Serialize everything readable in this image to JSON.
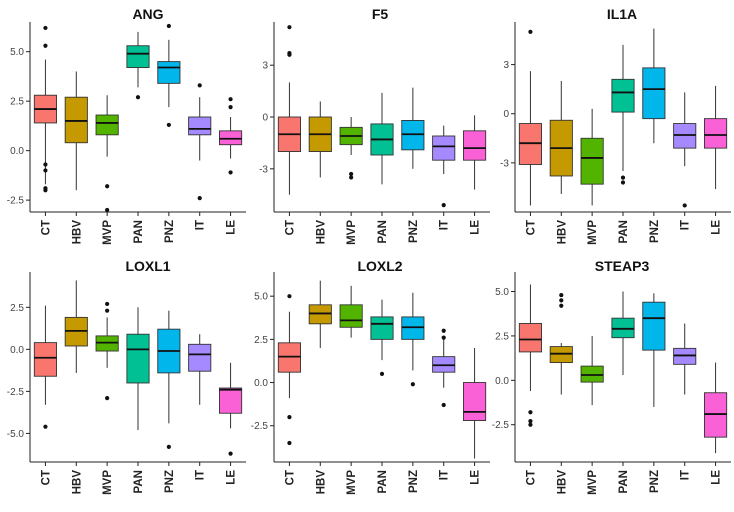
{
  "figure": "Boxplots of gene expression across sample groups",
  "chart_data": [
    {
      "type": "boxplot",
      "title": "ANG",
      "categories": [
        "CT",
        "HBV",
        "MVP",
        "PAN",
        "PNZ",
        "IT",
        "LE"
      ],
      "yticks": [
        -2.5,
        0.0,
        2.5,
        5.0
      ],
      "ytick_labels": [
        "-2.5",
        "0.0",
        "2.5",
        "5.0"
      ],
      "ylim": [
        -3.1,
        6.5
      ],
      "boxes": [
        {
          "min": -1.7,
          "q1": 1.4,
          "median": 2.1,
          "q3": 2.8,
          "max": 4.6,
          "outliers": [
            6.2,
            5.3,
            -0.7,
            -1.0,
            -1.9,
            -2.0
          ]
        },
        {
          "min": -2.0,
          "q1": 0.4,
          "median": 1.5,
          "q3": 2.7,
          "max": 4.0,
          "outliers": []
        },
        {
          "min": -0.3,
          "q1": 0.8,
          "median": 1.4,
          "q3": 1.8,
          "max": 2.8,
          "outliers": [
            -1.8,
            -3.0
          ]
        },
        {
          "min": 3.2,
          "q1": 4.2,
          "median": 4.9,
          "q3": 5.3,
          "max": 6.0,
          "outliers": [
            2.7
          ]
        },
        {
          "min": 2.2,
          "q1": 3.4,
          "median": 4.2,
          "q3": 4.5,
          "max": 5.6,
          "outliers": [
            6.3,
            1.3
          ]
        },
        {
          "min": -0.5,
          "q1": 0.8,
          "median": 1.1,
          "q3": 1.7,
          "max": 2.7,
          "outliers": [
            3.3,
            -2.4
          ]
        },
        {
          "min": -0.4,
          "q1": 0.3,
          "median": 0.6,
          "q3": 1.0,
          "max": 1.7,
          "outliers": [
            2.6,
            2.2,
            -1.1
          ]
        }
      ]
    },
    {
      "type": "boxplot",
      "title": "F5",
      "categories": [
        "CT",
        "HBV",
        "MVP",
        "PAN",
        "PNZ",
        "IT",
        "LE"
      ],
      "yticks": [
        -3,
        0,
        3
      ],
      "ytick_labels": [
        "-3",
        "0",
        "3"
      ],
      "ylim": [
        -5.5,
        5.5
      ],
      "boxes": [
        {
          "min": -4.5,
          "q1": -2.0,
          "median": -1.0,
          "q3": 0.0,
          "max": 2.0,
          "outliers": [
            5.2,
            3.7,
            3.6
          ]
        },
        {
          "min": -3.5,
          "q1": -2.0,
          "median": -1.0,
          "q3": 0.0,
          "max": 0.9,
          "outliers": []
        },
        {
          "min": -2.2,
          "q1": -1.6,
          "median": -1.1,
          "q3": -0.6,
          "max": 0.0,
          "outliers": [
            -3.3,
            -3.5
          ]
        },
        {
          "min": -3.9,
          "q1": -2.2,
          "median": -1.3,
          "q3": -0.4,
          "max": 1.4,
          "outliers": []
        },
        {
          "min": -3.0,
          "q1": -1.9,
          "median": -1.0,
          "q3": -0.2,
          "max": 1.7,
          "outliers": []
        },
        {
          "min": -3.3,
          "q1": -2.5,
          "median": -1.7,
          "q3": -1.1,
          "max": -0.5,
          "outliers": [
            -5.1
          ]
        },
        {
          "min": -4.2,
          "q1": -2.5,
          "median": -1.8,
          "q3": -0.8,
          "max": 0.1,
          "outliers": []
        }
      ]
    },
    {
      "type": "boxplot",
      "title": "IL1A",
      "categories": [
        "CT",
        "HBV",
        "MVP",
        "PAN",
        "PNZ",
        "IT",
        "LE"
      ],
      "yticks": [
        -3,
        0,
        3
      ],
      "ytick_labels": [
        "-3",
        "0",
        "3"
      ],
      "ylim": [
        -6.0,
        5.6
      ],
      "boxes": [
        {
          "min": -5.6,
          "q1": -3.1,
          "median": -1.8,
          "q3": -0.6,
          "max": 2.6,
          "outliers": [
            5.0
          ]
        },
        {
          "min": -4.9,
          "q1": -3.8,
          "median": -2.1,
          "q3": -0.4,
          "max": 2.0,
          "outliers": []
        },
        {
          "min": -5.6,
          "q1": -4.3,
          "median": -2.7,
          "q3": -1.5,
          "max": 0.3,
          "outliers": []
        },
        {
          "min": -3.5,
          "q1": 0.1,
          "median": 1.3,
          "q3": 2.1,
          "max": 4.2,
          "outliers": [
            -3.9,
            -4.2
          ]
        },
        {
          "min": -1.8,
          "q1": -0.3,
          "median": 1.5,
          "q3": 2.8,
          "max": 5.2,
          "outliers": []
        },
        {
          "min": -3.2,
          "q1": -2.1,
          "median": -1.3,
          "q3": -0.6,
          "max": 1.3,
          "outliers": [
            -5.6
          ]
        },
        {
          "min": -4.6,
          "q1": -2.1,
          "median": -1.3,
          "q3": -0.3,
          "max": 1.7,
          "outliers": []
        }
      ]
    },
    {
      "type": "boxplot",
      "title": "LOXL1",
      "categories": [
        "CT",
        "HBV",
        "MVP",
        "PAN",
        "PNZ",
        "IT",
        "LE"
      ],
      "yticks": [
        -5.0,
        -2.5,
        0.0,
        2.5
      ],
      "ytick_labels": [
        "-5.0",
        "-2.5",
        "0.0",
        "2.5"
      ],
      "ylim": [
        -6.7,
        4.6
      ],
      "boxes": [
        {
          "min": -3.3,
          "q1": -1.6,
          "median": -0.5,
          "q3": 0.4,
          "max": 2.6,
          "outliers": [
            -4.6
          ]
        },
        {
          "min": -1.4,
          "q1": 0.2,
          "median": 1.1,
          "q3": 1.9,
          "max": 4.1,
          "outliers": []
        },
        {
          "min": -1.1,
          "q1": -0.1,
          "median": 0.4,
          "q3": 0.8,
          "max": 1.9,
          "outliers": [
            2.7,
            2.3,
            -2.9
          ]
        },
        {
          "min": -4.8,
          "q1": -2.0,
          "median": 0.0,
          "q3": 0.9,
          "max": 2.5,
          "outliers": []
        },
        {
          "min": -4.4,
          "q1": -1.4,
          "median": -0.1,
          "q3": 1.2,
          "max": 2.3,
          "outliers": [
            -5.8
          ]
        },
        {
          "min": -3.3,
          "q1": -1.3,
          "median": -0.3,
          "q3": 0.3,
          "max": 0.9,
          "outliers": []
        },
        {
          "min": -4.7,
          "q1": -3.8,
          "median": -2.4,
          "q3": -2.3,
          "max": -0.8,
          "outliers": [
            -6.2
          ]
        }
      ]
    },
    {
      "type": "boxplot",
      "title": "LOXL2",
      "categories": [
        "CT",
        "HBV",
        "MVP",
        "PAN",
        "PNZ",
        "IT",
        "LE"
      ],
      "yticks": [
        -2.5,
        0.0,
        2.5,
        5.0
      ],
      "ytick_labels": [
        "-2.5",
        "0.0",
        "2.5",
        "5.0"
      ],
      "ylim": [
        -4.6,
        6.4
      ],
      "boxes": [
        {
          "min": -0.9,
          "q1": 0.6,
          "median": 1.5,
          "q3": 2.3,
          "max": 4.1,
          "outliers": [
            5.0,
            -2.0,
            -3.5
          ]
        },
        {
          "min": 2.0,
          "q1": 3.4,
          "median": 4.0,
          "q3": 4.5,
          "max": 5.9,
          "outliers": []
        },
        {
          "min": 2.6,
          "q1": 3.2,
          "median": 3.6,
          "q3": 4.5,
          "max": 5.6,
          "outliers": []
        },
        {
          "min": 1.3,
          "q1": 2.5,
          "median": 3.4,
          "q3": 3.8,
          "max": 4.8,
          "outliers": [
            0.5
          ]
        },
        {
          "min": 0.7,
          "q1": 2.5,
          "median": 3.2,
          "q3": 3.8,
          "max": 5.2,
          "outliers": [
            -0.1
          ]
        },
        {
          "min": -0.3,
          "q1": 0.6,
          "median": 1.0,
          "q3": 1.5,
          "max": 2.5,
          "outliers": [
            3.0,
            2.6,
            -1.3
          ]
        },
        {
          "min": -4.4,
          "q1": -2.2,
          "median": -1.7,
          "q3": 0.0,
          "max": 2.0,
          "outliers": []
        }
      ]
    },
    {
      "type": "boxplot",
      "title": "STEAP3",
      "categories": [
        "CT",
        "HBV",
        "MVP",
        "PAN",
        "PNZ",
        "IT",
        "LE"
      ],
      "yticks": [
        -2.5,
        0.0,
        2.5,
        5.0
      ],
      "ytick_labels": [
        "-2.5",
        "0.0",
        "2.5",
        "5.0"
      ],
      "ylim": [
        -4.6,
        6.1
      ],
      "boxes": [
        {
          "min": -0.6,
          "q1": 1.6,
          "median": 2.3,
          "q3": 3.2,
          "max": 5.4,
          "outliers": [
            -1.8,
            -2.3,
            -2.5
          ]
        },
        {
          "min": -0.8,
          "q1": 1.0,
          "median": 1.5,
          "q3": 1.9,
          "max": 2.1,
          "outliers": [
            4.8,
            4.5,
            4.2
          ]
        },
        {
          "min": -1.4,
          "q1": -0.1,
          "median": 0.3,
          "q3": 0.8,
          "max": 2.5,
          "outliers": []
        },
        {
          "min": 0.3,
          "q1": 2.4,
          "median": 2.9,
          "q3": 3.5,
          "max": 5.0,
          "outliers": []
        },
        {
          "min": -1.5,
          "q1": 1.7,
          "median": 3.5,
          "q3": 4.4,
          "max": 4.9,
          "outliers": []
        },
        {
          "min": -0.8,
          "q1": 0.9,
          "median": 1.4,
          "q3": 1.8,
          "max": 3.2,
          "outliers": []
        },
        {
          "min": -4.1,
          "q1": -3.2,
          "median": -1.9,
          "q3": -0.7,
          "max": 1.0,
          "outliers": []
        }
      ]
    }
  ],
  "colors": [
    "#F8766D",
    "#C49A00",
    "#53B400",
    "#00C094",
    "#00B6EB",
    "#A58AFF",
    "#FB61D7"
  ]
}
